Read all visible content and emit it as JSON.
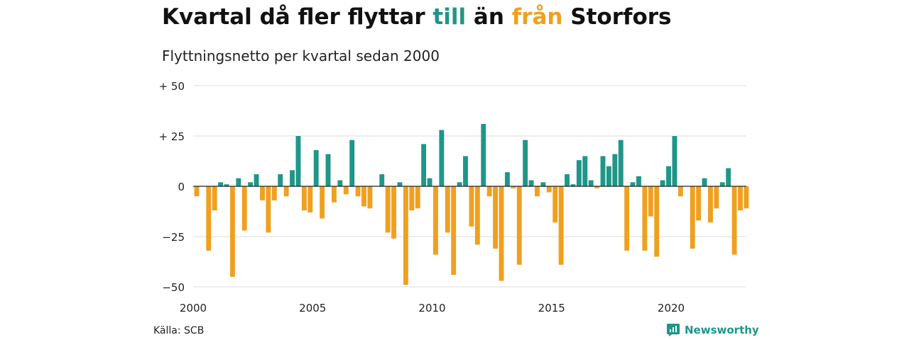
{
  "title": {
    "part1": "Kvartal då fler flyttar ",
    "till": "till",
    "part2": " än ",
    "fran": "från",
    "part3": " Storfors"
  },
  "subtitle": "Flyttningsnetto per kvartal sedan 2000",
  "source": "Källa: SCB",
  "brand": "Newsworthy",
  "colors": {
    "positive": "#1f9688",
    "negative": "#f0a01f",
    "grid": "#dddddd",
    "text": "#111111"
  },
  "chart_data": {
    "type": "bar",
    "x_start_year": 2000,
    "period": "quarter",
    "ylim": [
      -50,
      50
    ],
    "y_ticks": [
      {
        "value": 50,
        "label": "+ 50"
      },
      {
        "value": 25,
        "label": "+ 25"
      },
      {
        "value": 0,
        "label": "0"
      },
      {
        "value": -25,
        "label": "−25"
      },
      {
        "value": -50,
        "label": "−50"
      }
    ],
    "x_ticks": [
      "2000",
      "2005",
      "2010",
      "2015",
      "2020"
    ],
    "values": [
      -5,
      0,
      -32,
      -12,
      2,
      1,
      -45,
      4,
      -22,
      2,
      6,
      -7,
      -23,
      -7,
      6,
      -5,
      8,
      25,
      -12,
      -13,
      18,
      -16,
      16,
      -8,
      3,
      -4,
      23,
      -5,
      -10,
      -11,
      0,
      6,
      -23,
      -26,
      2,
      -49,
      -12,
      -11,
      21,
      4,
      -34,
      28,
      -23,
      -44,
      2,
      15,
      -20,
      -29,
      31,
      -5,
      -31,
      -47,
      7,
      -1,
      -39,
      23,
      3,
      -5,
      2,
      -3,
      -18,
      -39,
      6,
      1,
      13,
      15,
      3,
      -1,
      15,
      10,
      16,
      23,
      -32,
      2,
      5,
      -32,
      -15,
      -35,
      3,
      10,
      25,
      -5,
      0,
      -31,
      -17,
      4,
      -18,
      -11,
      2,
      9,
      -34,
      -12,
      -11
    ]
  }
}
